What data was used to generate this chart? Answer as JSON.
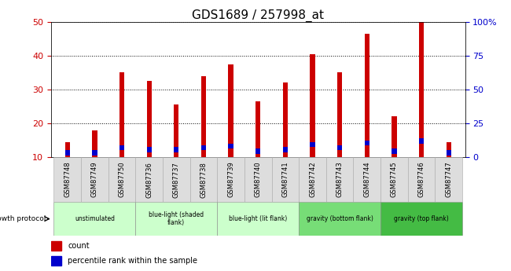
{
  "title": "GDS1689 / 257998_at",
  "samples": [
    "GSM87748",
    "GSM87749",
    "GSM87750",
    "GSM87736",
    "GSM87737",
    "GSM87738",
    "GSM87739",
    "GSM87740",
    "GSM87741",
    "GSM87742",
    "GSM87743",
    "GSM87744",
    "GSM87745",
    "GSM87746",
    "GSM87747"
  ],
  "counts": [
    14.5,
    18.0,
    35.0,
    32.5,
    25.5,
    34.0,
    37.5,
    26.5,
    32.0,
    40.5,
    35.0,
    46.5,
    22.0,
    50.0,
    14.5
  ],
  "pct_heights": [
    1.5,
    1.5,
    1.5,
    1.5,
    1.5,
    1.5,
    1.5,
    1.5,
    1.5,
    1.5,
    1.5,
    1.5,
    1.5,
    1.5,
    1.5
  ],
  "pct_bottoms": [
    10.5,
    10.5,
    12.0,
    11.5,
    11.5,
    12.0,
    12.5,
    11.0,
    11.5,
    13.0,
    12.0,
    13.5,
    11.0,
    14.0,
    10.5
  ],
  "bar_bottom": 10,
  "ylim_left": [
    10,
    50
  ],
  "yticks_left": [
    10,
    20,
    30,
    40,
    50
  ],
  "ylim_right": [
    0,
    100
  ],
  "yticks_right": [
    0,
    25,
    50,
    75,
    100
  ],
  "ytick_labels_right": [
    "0",
    "25",
    "50",
    "75",
    "100%"
  ],
  "bar_color": "#cc0000",
  "percentile_color": "#0000cc",
  "bar_width": 0.18,
  "group_boundaries": [
    {
      "label": "unstimulated",
      "start": 0,
      "end": 3,
      "color": "#ccffcc"
    },
    {
      "label": "blue-light (shaded\nflank)",
      "start": 3,
      "end": 6,
      "color": "#ccffcc"
    },
    {
      "label": "blue-light (lit flank)",
      "start": 6,
      "end": 9,
      "color": "#ccffcc"
    },
    {
      "label": "gravity (bottom flank)",
      "start": 9,
      "end": 12,
      "color": "#77dd77"
    },
    {
      "label": "gravity (top flank)",
      "start": 12,
      "end": 15,
      "color": "#44bb44"
    }
  ],
  "title_fontsize": 11,
  "tick_fontsize": 8,
  "sample_fontsize": 6
}
